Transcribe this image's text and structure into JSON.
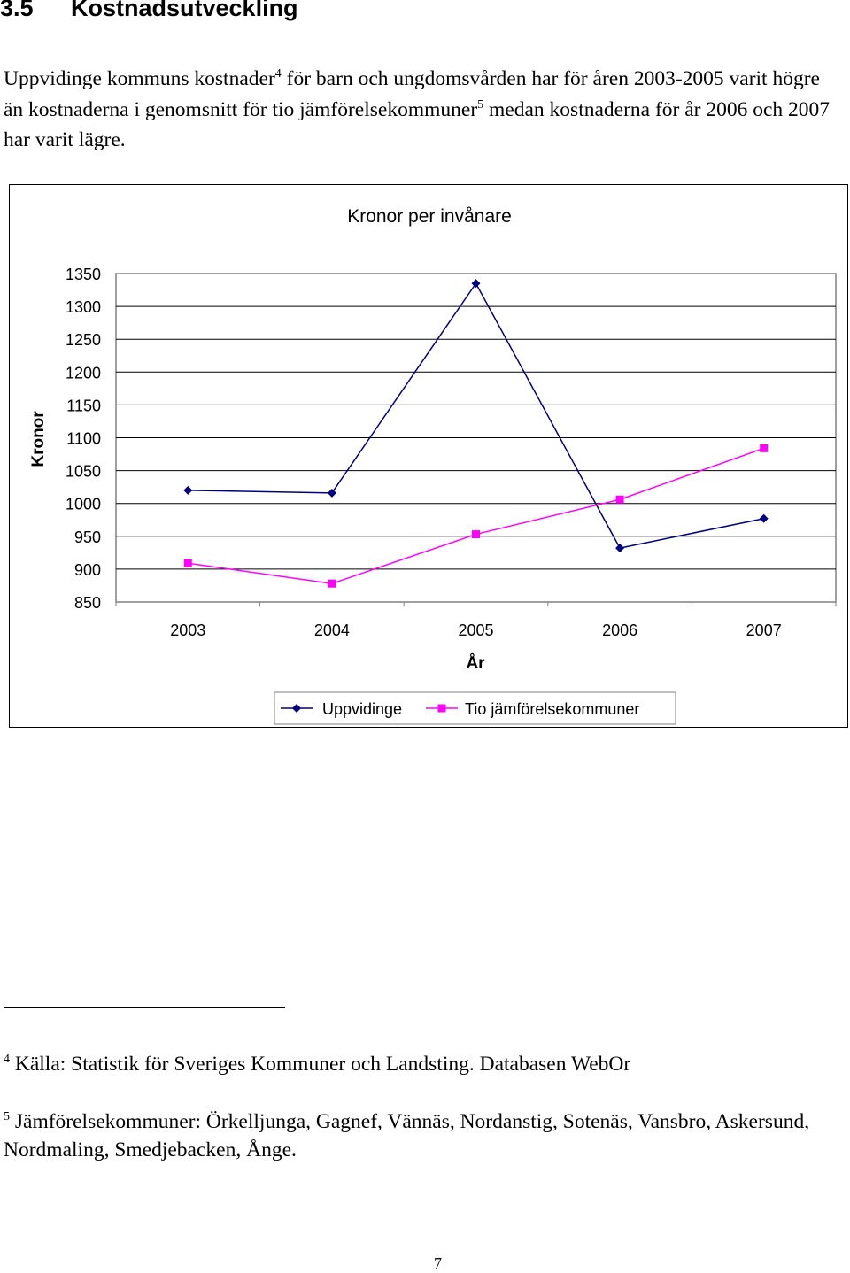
{
  "section": {
    "number": "3.5",
    "title": "Kostnadsutveckling"
  },
  "intro": {
    "part1": "Uppvidinge kommuns kostnader",
    "ref1": "4",
    "part2": " för barn och ungdomsvården har för åren 2003-2005 varit högre än kostnaderna i genomsnitt för tio jämförelsekommuner",
    "ref2": "5",
    "part3": " medan kostnaderna för år 2006 och 2007 har varit lägre."
  },
  "chart_data": {
    "type": "line",
    "title": "Kronor per invånare",
    "xlabel": "År",
    "ylabel": "Kronor",
    "categories": [
      "2003",
      "2004",
      "2005",
      "2006",
      "2007"
    ],
    "yticks": [
      "1350",
      "1300",
      "1250",
      "1200",
      "1150",
      "1100",
      "1050",
      "1000",
      "950",
      "900",
      "850"
    ],
    "ylim": [
      850,
      1350
    ],
    "grid": "horizontal",
    "legend_position": "bottom",
    "series": [
      {
        "name": "Uppvidinge",
        "values": [
          1020,
          1016,
          1335,
          932,
          977
        ],
        "color": "#000080",
        "marker": "diamond"
      },
      {
        "name": "Tio jämförelsekommuner",
        "values": [
          909,
          878,
          953,
          1006,
          1084
        ],
        "color": "#ff00ff",
        "marker": "square"
      }
    ]
  },
  "footnotes": [
    {
      "mark": "4",
      "text": " Källa: Statistik för Sveriges Kommuner och Landsting. Databasen WebOr"
    },
    {
      "mark": "5",
      "text": " Jämförelsekommuner: Örkelljunga, Gagnef, Vännäs, Nordanstig, Sotenäs, Vansbro, Askersund, Nordmaling, Smedjebacken, Ånge."
    }
  ],
  "page_number": "7"
}
